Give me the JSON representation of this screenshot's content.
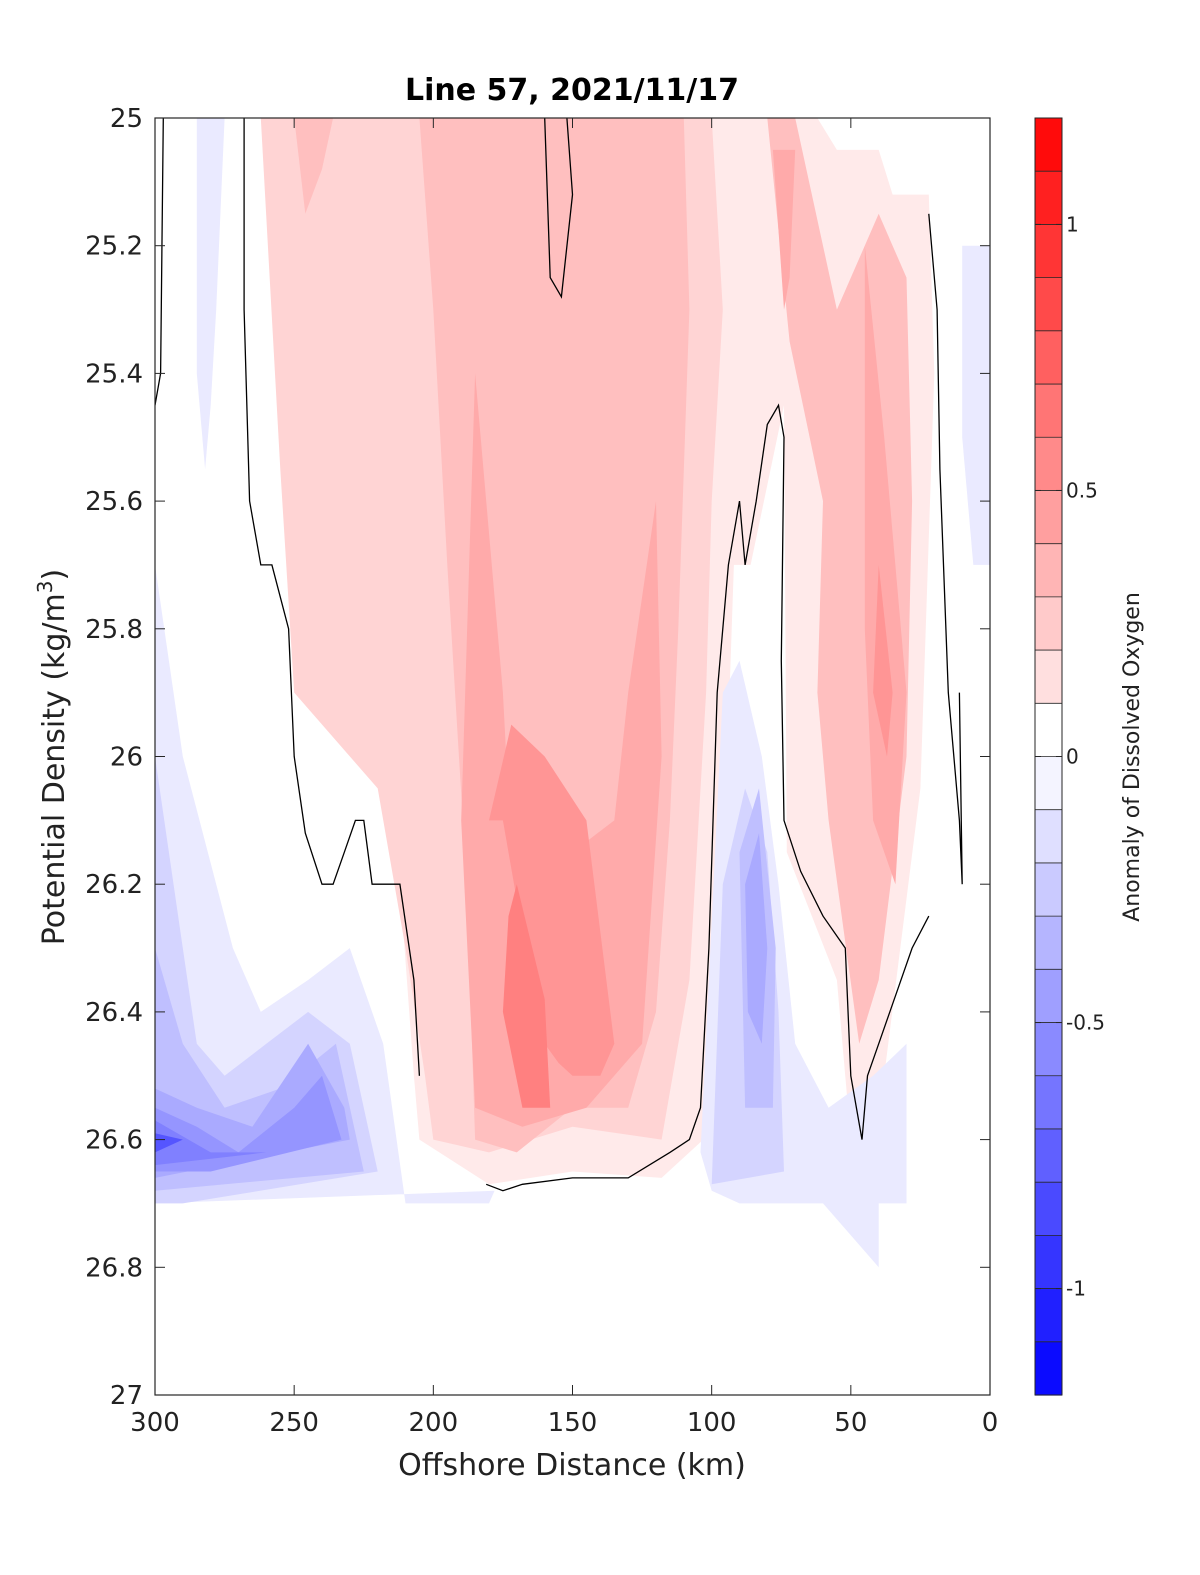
{
  "chart_data": {
    "type": "contourf",
    "title": "Line 57, 2021/11/17",
    "xlabel": "Offshore Distance (km)",
    "ylabel": {
      "text": "Potential Density (kg/m",
      "superscript": "3",
      "suffix": ")"
    },
    "xlim": [
      300,
      0
    ],
    "ylim": [
      25,
      27
    ],
    "x_reversed": true,
    "y_reversed": true,
    "xticks": [
      300,
      250,
      200,
      150,
      100,
      50,
      0
    ],
    "xtick_labels": [
      "300",
      "250",
      "200",
      "150",
      "100",
      "50",
      "0"
    ],
    "yticks": [
      25,
      25.2,
      25.4,
      25.6,
      25.8,
      26,
      26.2,
      26.4,
      26.6,
      26.8,
      27
    ],
    "ytick_labels": [
      "25",
      "25.2",
      "25.4",
      "25.6",
      "25.8",
      "26",
      "26.2",
      "26.4",
      "26.6",
      "26.8",
      "27"
    ],
    "grid": false,
    "zero_contour_color": "#000000",
    "colorbar": {
      "label": "Anomaly of Dissolved Oxygen",
      "range": [
        -1.2,
        1.2
      ],
      "step": 0.1,
      "ticks": [
        1,
        0.5,
        0,
        -0.5,
        -1
      ],
      "tick_labels": [
        "1",
        "0.5",
        "0",
        "-0.5",
        "-1"
      ],
      "colors": [
        "#0000ff",
        "#1a1aff",
        "#3333ff",
        "#4d4dff",
        "#6666ff",
        "#8080ff",
        "#9999ff",
        "#b3b3ff",
        "#ccccff",
        "#e6e6ff",
        "#ffffff",
        "#ffffff",
        "#ffe6e6",
        "#ffcccc",
        "#ffb3b3",
        "#ff9999",
        "#ff8080",
        "#ff6666",
        "#ff4d4d",
        "#ff3333",
        "#ff1a1a",
        "#ff0000"
      ]
    },
    "regions": [
      {
        "level": 0.1,
        "points": [
          [
            268,
            25.0
          ],
          [
            248,
            25.0
          ],
          [
            246,
            25.5
          ],
          [
            232,
            25.9
          ],
          [
            222,
            26.0
          ],
          [
            212,
            26.2
          ],
          [
            207,
            26.5
          ],
          [
            205,
            26.6
          ],
          [
            180,
            26.67
          ],
          [
            150,
            26.65
          ],
          [
            118,
            26.66
          ],
          [
            103,
            26.6
          ],
          [
            98,
            26.3
          ],
          [
            94,
            25.95
          ],
          [
            92,
            25.7
          ],
          [
            86,
            25.7
          ],
          [
            74,
            25.45
          ],
          [
            73,
            26.15
          ],
          [
            55,
            26.35
          ],
          [
            50,
            26.6
          ],
          [
            38,
            26.5
          ],
          [
            25,
            26.05
          ],
          [
            20,
            25.4
          ],
          [
            22,
            25.12
          ],
          [
            35,
            25.12
          ],
          [
            40,
            25.05
          ],
          [
            55,
            25.05
          ],
          [
            62,
            25.0
          ]
        ]
      },
      {
        "level": 0.1,
        "points": [
          [
            160,
            25.0
          ],
          [
            158,
            25.25
          ],
          [
            154,
            25.28
          ],
          [
            150,
            25.12
          ],
          [
            152,
            25.0
          ]
        ]
      },
      {
        "level": 0.2,
        "points": [
          [
            262,
            25.0
          ],
          [
            255,
            25.55
          ],
          [
            250,
            25.9
          ],
          [
            220,
            26.05
          ],
          [
            210,
            26.3
          ],
          [
            203,
            26.5
          ],
          [
            200,
            26.6
          ],
          [
            180,
            26.62
          ],
          [
            150,
            26.58
          ],
          [
            118,
            26.6
          ],
          [
            108,
            26.35
          ],
          [
            102,
            25.9
          ],
          [
            100,
            25.6
          ],
          [
            96,
            25.3
          ],
          [
            100,
            25.0
          ]
        ]
      },
      {
        "level": 0.3,
        "points": [
          [
            250,
            25.0
          ],
          [
            246,
            25.15
          ],
          [
            240,
            25.08
          ],
          [
            236,
            25.0
          ]
        ]
      },
      {
        "level": 0.3,
        "points": [
          [
            205,
            25.0
          ],
          [
            200,
            25.3
          ],
          [
            195,
            25.7
          ],
          [
            188,
            26.2
          ],
          [
            185,
            26.6
          ],
          [
            170,
            26.62
          ],
          [
            150,
            26.55
          ],
          [
            130,
            26.55
          ],
          [
            120,
            26.4
          ],
          [
            115,
            26.1
          ],
          [
            112,
            25.8
          ],
          [
            108,
            25.3
          ],
          [
            110,
            25.0
          ]
        ]
      },
      {
        "level": 0.3,
        "points": [
          [
            80,
            25.0
          ],
          [
            72,
            25.35
          ],
          [
            60,
            25.6
          ],
          [
            62,
            25.9
          ],
          [
            58,
            26.1
          ],
          [
            47,
            26.45
          ],
          [
            40,
            26.35
          ],
          [
            30,
            26.0
          ],
          [
            28,
            25.6
          ],
          [
            30,
            25.25
          ],
          [
            35,
            25.2
          ],
          [
            40,
            25.15
          ],
          [
            55,
            25.3
          ],
          [
            70,
            25.0
          ]
        ]
      },
      {
        "level": 0.4,
        "points": [
          [
            185,
            25.4
          ],
          [
            175,
            25.9
          ],
          [
            172,
            26.15
          ],
          [
            165,
            26.2
          ],
          [
            150,
            26.15
          ],
          [
            135,
            26.1
          ],
          [
            130,
            25.9
          ],
          [
            120,
            25.6
          ],
          [
            118,
            26.0
          ],
          [
            125,
            26.45
          ],
          [
            145,
            26.55
          ],
          [
            168,
            26.58
          ],
          [
            185,
            26.55
          ],
          [
            190,
            26.1
          ]
        ]
      },
      {
        "level": 0.4,
        "points": [
          [
            78,
            25.05
          ],
          [
            74,
            25.3
          ],
          [
            72,
            25.25
          ],
          [
            70,
            25.05
          ]
        ]
      },
      {
        "level": 0.4,
        "points": [
          [
            45,
            25.2
          ],
          [
            38,
            25.5
          ],
          [
            30,
            25.9
          ],
          [
            34,
            26.2
          ],
          [
            42,
            26.1
          ],
          [
            45,
            25.8
          ]
        ]
      },
      {
        "level": 0.5,
        "points": [
          [
            175,
            26.1
          ],
          [
            165,
            26.35
          ],
          [
            160,
            26.45
          ],
          [
            155,
            26.48
          ],
          [
            150,
            26.5
          ],
          [
            140,
            26.5
          ],
          [
            135,
            26.45
          ],
          [
            145,
            26.1
          ],
          [
            160,
            26.0
          ],
          [
            172,
            25.95
          ],
          [
            180,
            26.1
          ]
        ]
      },
      {
        "level": 0.6,
        "points": [
          [
            170,
            26.2
          ],
          [
            160,
            26.38
          ],
          [
            158,
            26.55
          ],
          [
            168,
            26.55
          ],
          [
            175,
            26.4
          ],
          [
            173,
            26.25
          ]
        ]
      },
      {
        "level": 0.5,
        "points": [
          [
            40,
            25.7
          ],
          [
            35,
            25.9
          ],
          [
            37,
            26.0
          ],
          [
            42,
            25.9
          ]
        ]
      },
      {
        "level": -0.1,
        "points": [
          [
            300,
            25.7
          ],
          [
            290,
            26.0
          ],
          [
            272,
            26.3
          ],
          [
            262,
            26.4
          ],
          [
            245,
            26.35
          ],
          [
            230,
            26.3
          ],
          [
            218,
            26.45
          ],
          [
            210,
            26.7
          ],
          [
            180,
            26.7
          ],
          [
            178,
            26.68
          ],
          [
            300,
            26.7
          ]
        ]
      },
      {
        "level": -0.1,
        "points": [
          [
            285,
            25.0
          ],
          [
            275,
            25.0
          ],
          [
            278,
            25.3
          ],
          [
            280,
            25.45
          ],
          [
            282,
            25.55
          ],
          [
            285,
            25.4
          ]
        ]
      },
      {
        "level": -0.1,
        "points": [
          [
            96,
            25.9
          ],
          [
            90,
            25.85
          ],
          [
            82,
            26.0
          ],
          [
            76,
            26.2
          ],
          [
            70,
            26.45
          ],
          [
            58,
            26.55
          ],
          [
            42,
            26.5
          ],
          [
            30,
            26.45
          ],
          [
            30,
            26.7
          ],
          [
            40,
            26.7
          ],
          [
            40,
            26.8
          ],
          [
            60,
            26.7
          ],
          [
            90,
            26.7
          ],
          [
            100,
            26.68
          ],
          [
            104,
            26.62
          ]
        ]
      },
      {
        "level": -0.1,
        "points": [
          [
            10,
            25.2
          ],
          [
            0,
            25.2
          ],
          [
            0,
            25.7
          ],
          [
            6,
            25.7
          ],
          [
            10,
            25.5
          ]
        ]
      },
      {
        "level": -0.2,
        "points": [
          [
            300,
            26.0
          ],
          [
            290,
            26.3
          ],
          [
            285,
            26.45
          ],
          [
            275,
            26.5
          ],
          [
            260,
            26.45
          ],
          [
            245,
            26.4
          ],
          [
            230,
            26.45
          ],
          [
            220,
            26.65
          ],
          [
            290,
            26.7
          ],
          [
            300,
            26.7
          ]
        ]
      },
      {
        "level": -0.2,
        "points": [
          [
            96,
            26.2
          ],
          [
            88,
            26.05
          ],
          [
            80,
            26.15
          ],
          [
            76,
            26.4
          ],
          [
            74,
            26.65
          ],
          [
            100,
            26.67
          ]
        ]
      },
      {
        "level": -0.3,
        "points": [
          [
            300,
            26.3
          ],
          [
            290,
            26.45
          ],
          [
            275,
            26.55
          ],
          [
            255,
            26.52
          ],
          [
            235,
            26.45
          ],
          [
            225,
            26.65
          ],
          [
            300,
            26.68
          ]
        ]
      },
      {
        "level": -0.3,
        "points": [
          [
            90,
            26.15
          ],
          [
            83,
            26.05
          ],
          [
            77,
            26.3
          ],
          [
            78,
            26.55
          ],
          [
            88,
            26.55
          ]
        ]
      },
      {
        "level": -0.4,
        "points": [
          [
            300,
            26.52
          ],
          [
            285,
            26.55
          ],
          [
            265,
            26.58
          ],
          [
            245,
            26.45
          ],
          [
            232,
            26.55
          ],
          [
            230,
            26.6
          ],
          [
            300,
            26.66
          ]
        ]
      },
      {
        "level": -0.4,
        "points": [
          [
            88,
            26.2
          ],
          [
            83,
            26.12
          ],
          [
            80,
            26.3
          ],
          [
            82,
            26.45
          ],
          [
            87,
            26.4
          ]
        ]
      },
      {
        "level": -0.5,
        "points": [
          [
            300,
            26.55
          ],
          [
            285,
            26.58
          ],
          [
            270,
            26.62
          ],
          [
            250,
            26.55
          ],
          [
            240,
            26.5
          ],
          [
            233,
            26.6
          ],
          [
            280,
            26.65
          ],
          [
            300,
            26.65
          ]
        ]
      },
      {
        "level": -0.6,
        "points": [
          [
            300,
            26.57
          ],
          [
            280,
            26.62
          ],
          [
            260,
            26.62
          ],
          [
            300,
            26.64
          ]
        ]
      },
      {
        "level": -0.8,
        "points": [
          [
            300,
            26.59
          ],
          [
            290,
            26.6
          ],
          [
            300,
            26.62
          ]
        ]
      }
    ],
    "zero_contours": [
      [
        [
          297,
          25.0
        ],
        [
          298,
          25.4
        ],
        [
          300,
          25.45
        ]
      ],
      [
        [
          268,
          25.0
        ],
        [
          268,
          25.3
        ],
        [
          266,
          25.6
        ],
        [
          262,
          25.7
        ],
        [
          258,
          25.7
        ],
        [
          252,
          25.8
        ],
        [
          250,
          26.0
        ],
        [
          246,
          26.12
        ],
        [
          240,
          26.2
        ],
        [
          236,
          26.2
        ],
        [
          232,
          26.15
        ],
        [
          228,
          26.1
        ],
        [
          225,
          26.1
        ],
        [
          222,
          26.2
        ],
        [
          214,
          26.2
        ],
        [
          212,
          26.2
        ],
        [
          207,
          26.35
        ],
        [
          205,
          26.5
        ]
      ],
      [
        [
          160,
          25.0
        ],
        [
          158,
          25.25
        ],
        [
          154,
          25.28
        ],
        [
          150,
          25.12
        ],
        [
          152,
          25.0
        ]
      ],
      [
        [
          181,
          26.67
        ],
        [
          175,
          26.68
        ],
        [
          168,
          26.67
        ],
        [
          150,
          26.66
        ],
        [
          130,
          26.66
        ],
        [
          115,
          26.62
        ],
        [
          108,
          26.6
        ],
        [
          104,
          26.55
        ],
        [
          101,
          26.3
        ],
        [
          98,
          25.9
        ],
        [
          94,
          25.7
        ],
        [
          90,
          25.6
        ],
        [
          88,
          25.7
        ],
        [
          84,
          25.6
        ],
        [
          80,
          25.48
        ],
        [
          76,
          25.45
        ],
        [
          74,
          25.5
        ],
        [
          75,
          25.85
        ],
        [
          74,
          26.1
        ],
        [
          68,
          26.18
        ],
        [
          60,
          26.25
        ],
        [
          52,
          26.3
        ],
        [
          50,
          26.5
        ],
        [
          46,
          26.6
        ],
        [
          44,
          26.5
        ],
        [
          40,
          26.45
        ],
        [
          28,
          26.3
        ],
        [
          22,
          26.25
        ]
      ],
      [
        [
          22,
          25.15
        ],
        [
          19,
          25.3
        ],
        [
          18,
          25.55
        ],
        [
          15,
          25.9
        ],
        [
          11,
          26.1
        ],
        [
          10,
          26.2
        ],
        [
          11,
          25.9
        ]
      ]
    ]
  }
}
